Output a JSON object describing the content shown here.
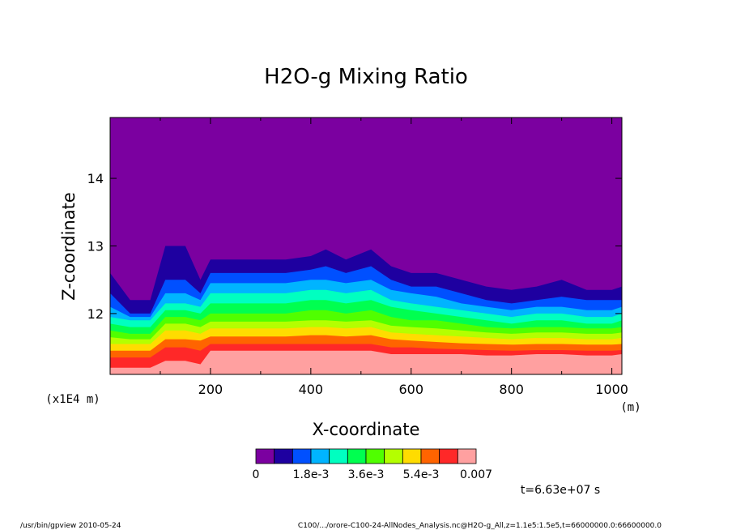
{
  "chart_data": {
    "type": "heatmap",
    "title": "H2O-g Mixing Ratio",
    "xlabel": "X-coordinate",
    "ylabel": "Z-coordinate",
    "x_unit": "(m)",
    "y_unit": "(x1E4 m)",
    "xlim": [
      0,
      1020
    ],
    "ylim": [
      11.1,
      14.9
    ],
    "x_ticks": [
      200,
      400,
      600,
      800,
      1000
    ],
    "y_ticks": [
      12,
      13,
      14
    ],
    "colorbar": {
      "colors": [
        "#7b00a0",
        "#1e00a0",
        "#0050ff",
        "#00b4ff",
        "#00ffc0",
        "#00ff50",
        "#50ff00",
        "#b4ff00",
        "#ffdc00",
        "#ff6400",
        "#ff2828",
        "#ffa0a0"
      ],
      "tick_labels": [
        "0",
        "1.8e-3",
        "3.6e-3",
        "5.4e-3",
        "0.007"
      ],
      "range": [
        0,
        0.007
      ]
    },
    "contour_tops": {
      "x": [
        0,
        40,
        80,
        110,
        150,
        180,
        200,
        250,
        300,
        350,
        400,
        430,
        470,
        520,
        560,
        600,
        650,
        700,
        750,
        800,
        850,
        900,
        950,
        1000,
        1020
      ],
      "levels": [
        {
          "value": 0.0006,
          "z": [
            12.6,
            12.2,
            12.2,
            13.0,
            13.0,
            12.5,
            12.8,
            12.8,
            12.8,
            12.8,
            12.85,
            12.95,
            12.8,
            12.95,
            12.7,
            12.6,
            12.6,
            12.5,
            12.4,
            12.35,
            12.4,
            12.5,
            12.35,
            12.35,
            12.4
          ]
        },
        {
          "value": 0.0012,
          "z": [
            12.3,
            12.0,
            12.0,
            12.5,
            12.5,
            12.3,
            12.6,
            12.6,
            12.6,
            12.6,
            12.65,
            12.7,
            12.6,
            12.7,
            12.5,
            12.4,
            12.4,
            12.3,
            12.2,
            12.15,
            12.2,
            12.25,
            12.2,
            12.2,
            12.2
          ]
        },
        {
          "value": 0.0018,
          "z": [
            12.1,
            11.95,
            11.95,
            12.3,
            12.3,
            12.2,
            12.45,
            12.45,
            12.45,
            12.45,
            12.5,
            12.5,
            12.45,
            12.5,
            12.35,
            12.3,
            12.25,
            12.15,
            12.1,
            12.05,
            12.1,
            12.1,
            12.05,
            12.05,
            12.1
          ]
        },
        {
          "value": 0.0024,
          "z": [
            11.95,
            11.9,
            11.9,
            12.15,
            12.15,
            12.1,
            12.3,
            12.3,
            12.3,
            12.3,
            12.35,
            12.35,
            12.3,
            12.35,
            12.2,
            12.15,
            12.1,
            12.05,
            12.0,
            11.95,
            12.0,
            12.0,
            11.95,
            11.95,
            12.0
          ]
        },
        {
          "value": 0.003,
          "z": [
            11.85,
            11.8,
            11.8,
            12.05,
            12.05,
            12.0,
            12.15,
            12.15,
            12.15,
            12.15,
            12.2,
            12.2,
            12.15,
            12.2,
            12.1,
            12.05,
            12.0,
            11.95,
            11.9,
            11.85,
            11.9,
            11.9,
            11.85,
            11.85,
            11.9
          ]
        },
        {
          "value": 0.0036,
          "z": [
            11.75,
            11.7,
            11.7,
            11.95,
            11.95,
            11.9,
            12.0,
            12.0,
            12.0,
            12.0,
            12.05,
            12.05,
            12.0,
            12.05,
            11.95,
            11.9,
            11.9,
            11.85,
            11.8,
            11.78,
            11.8,
            11.8,
            11.78,
            11.78,
            11.8
          ]
        },
        {
          "value": 0.0042,
          "z": [
            11.65,
            11.62,
            11.62,
            11.85,
            11.85,
            11.8,
            11.88,
            11.88,
            11.88,
            11.88,
            11.9,
            11.9,
            11.88,
            11.9,
            11.82,
            11.8,
            11.78,
            11.75,
            11.72,
            11.7,
            11.72,
            11.72,
            11.7,
            11.7,
            11.72
          ]
        },
        {
          "value": 0.0048,
          "z": [
            11.55,
            11.55,
            11.55,
            11.75,
            11.75,
            11.7,
            11.78,
            11.78,
            11.78,
            11.78,
            11.8,
            11.8,
            11.78,
            11.8,
            11.72,
            11.7,
            11.68,
            11.66,
            11.64,
            11.62,
            11.64,
            11.64,
            11.62,
            11.62,
            11.64
          ]
        },
        {
          "value": 0.0054,
          "z": [
            11.45,
            11.45,
            11.45,
            11.62,
            11.62,
            11.6,
            11.66,
            11.66,
            11.66,
            11.66,
            11.68,
            11.68,
            11.66,
            11.68,
            11.62,
            11.6,
            11.58,
            11.56,
            11.55,
            11.54,
            11.55,
            11.55,
            11.54,
            11.54,
            11.55
          ]
        },
        {
          "value": 0.006,
          "z": [
            11.35,
            11.35,
            11.35,
            11.5,
            11.5,
            11.45,
            11.55,
            11.55,
            11.55,
            11.55,
            11.55,
            11.55,
            11.55,
            11.55,
            11.5,
            11.5,
            11.48,
            11.47,
            11.46,
            11.45,
            11.46,
            11.46,
            11.45,
            11.45,
            11.46
          ]
        },
        {
          "value": 0.0066,
          "z": [
            11.2,
            11.2,
            11.2,
            11.3,
            11.3,
            11.25,
            11.45,
            11.45,
            11.45,
            11.45,
            11.45,
            11.45,
            11.45,
            11.45,
            11.4,
            11.4,
            11.4,
            11.4,
            11.38,
            11.38,
            11.4,
            11.4,
            11.38,
            11.38,
            11.4
          ]
        }
      ]
    }
  },
  "annotations": {
    "time": "t=6.63e+07 s",
    "footer_left": "/usr/bin/gpview  2010-05-24",
    "footer_right": "C100/.../orore-C100-24-AllNodes_Analysis.nc@H2O-g_All,z=1.1e5:1.5e5,t=66000000.0:66600000.0"
  }
}
